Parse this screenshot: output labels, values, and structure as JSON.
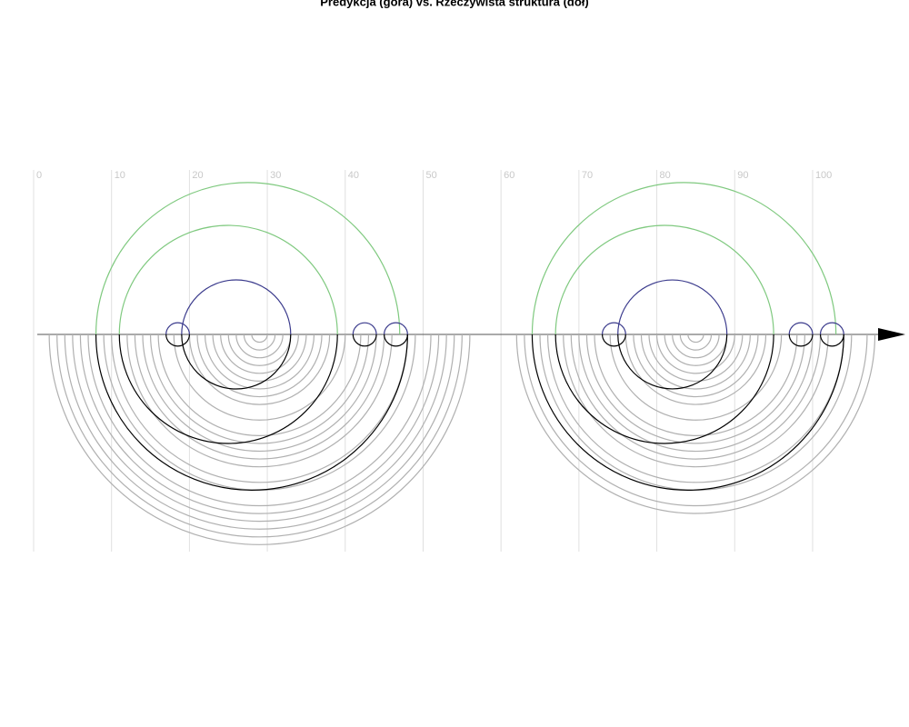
{
  "chart_data": {
    "type": "arc",
    "title": "Predykcja (góra) vs. Rzeczywista struktura (dół)",
    "xlim": [
      0,
      111.5
    ],
    "xticks": [
      0,
      10,
      20,
      30,
      40,
      50,
      60,
      70,
      80,
      90,
      100
    ],
    "grid": true,
    "groups": [
      {
        "side": "top",
        "color": "#7fc97f",
        "pairs": [
          [
            8,
            47
          ],
          [
            11,
            39
          ],
          [
            64,
            103
          ],
          [
            67,
            95
          ]
        ]
      },
      {
        "side": "top",
        "color": "#3a3a8c",
        "pairs": [
          [
            17,
            20
          ],
          [
            19,
            33
          ],
          [
            41,
            44
          ],
          [
            45,
            48
          ],
          [
            73,
            76
          ],
          [
            75,
            89
          ],
          [
            97,
            100
          ],
          [
            101,
            104
          ]
        ]
      },
      {
        "side": "bottom",
        "color": "#b0b0b0",
        "pairs": [
          [
            2,
            56
          ],
          [
            3,
            55
          ],
          [
            4,
            54
          ],
          [
            5,
            53
          ],
          [
            6,
            52
          ],
          [
            7,
            51
          ],
          [
            9,
            49
          ],
          [
            10,
            48
          ],
          [
            12,
            46
          ],
          [
            13,
            45
          ],
          [
            14,
            44
          ],
          [
            15,
            43
          ],
          [
            16,
            42
          ],
          [
            18,
            40
          ],
          [
            20,
            38
          ],
          [
            21,
            37
          ],
          [
            22,
            36
          ],
          [
            23,
            35
          ],
          [
            24,
            34
          ],
          [
            25,
            33
          ],
          [
            26,
            32
          ],
          [
            27,
            31
          ],
          [
            28,
            30
          ],
          [
            62,
            108
          ],
          [
            63,
            107
          ],
          [
            65,
            105
          ],
          [
            66,
            104
          ],
          [
            68,
            102
          ],
          [
            69,
            101
          ],
          [
            70,
            100
          ],
          [
            71,
            99
          ],
          [
            72,
            98
          ],
          [
            74,
            96
          ],
          [
            76,
            94
          ],
          [
            77,
            93
          ],
          [
            78,
            92
          ],
          [
            79,
            91
          ],
          [
            80,
            90
          ],
          [
            81,
            89
          ],
          [
            82,
            88
          ],
          [
            83,
            87
          ],
          [
            84,
            86
          ]
        ]
      },
      {
        "side": "bottom",
        "color": "#000000",
        "pairs": [
          [
            8,
            48
          ],
          [
            11,
            39
          ],
          [
            17,
            20
          ],
          [
            19,
            33
          ],
          [
            41,
            44
          ],
          [
            45,
            48
          ],
          [
            64,
            104
          ],
          [
            67,
            95
          ],
          [
            73,
            76
          ],
          [
            75,
            89
          ],
          [
            97,
            100
          ],
          [
            101,
            104
          ]
        ]
      }
    ]
  }
}
